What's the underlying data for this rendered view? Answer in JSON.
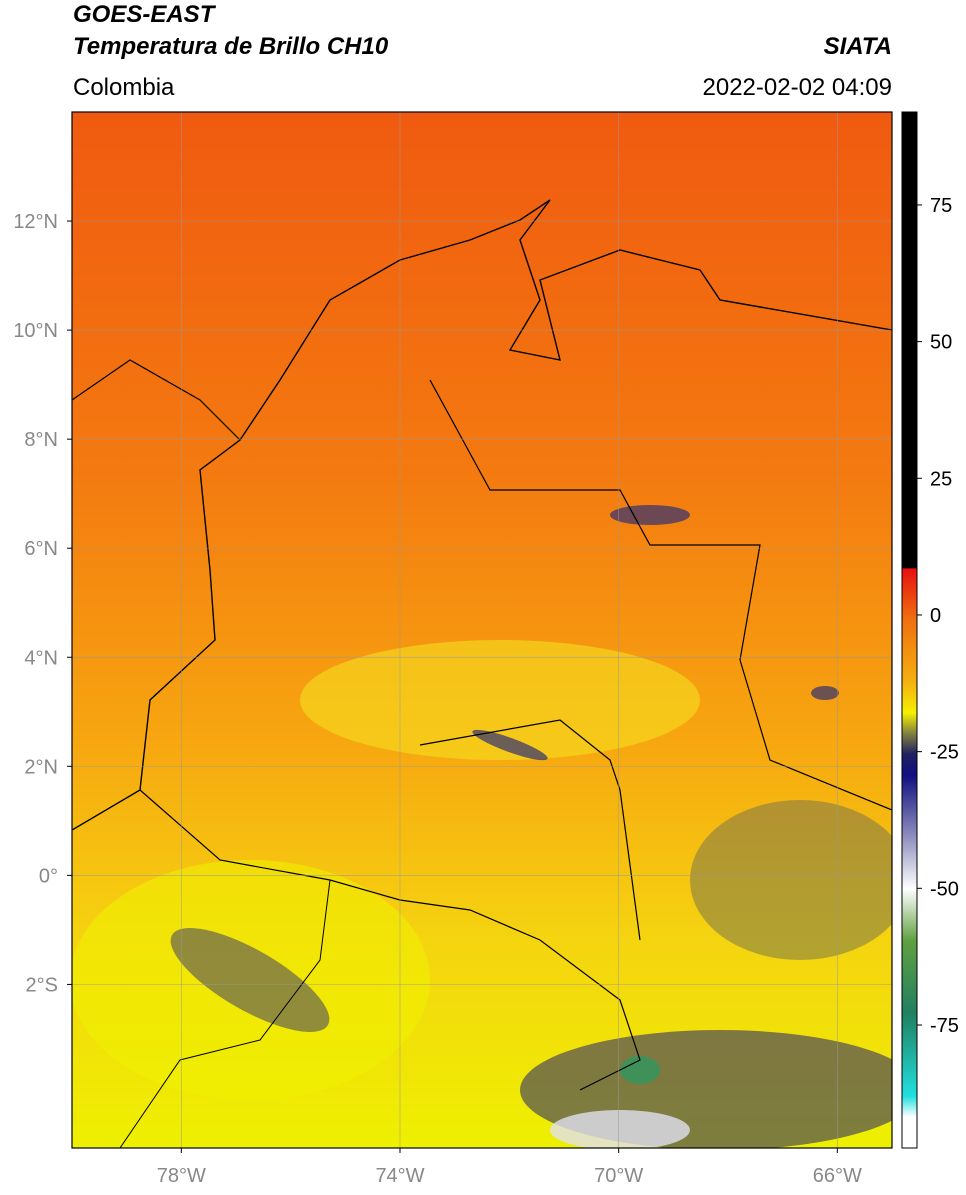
{
  "header": {
    "satellite": "GOES-EAST",
    "product": "Temperatura de Brillo CH10",
    "region": "Colombia",
    "source": "SIATA",
    "datetime": "2022-02-02 04:09"
  },
  "map": {
    "lon_lim": [
      -80,
      -65
    ],
    "lat_lim": [
      -5,
      14
    ],
    "lon_ticks": [
      {
        "value": -78,
        "label": "78°W"
      },
      {
        "value": -74,
        "label": "74°W"
      },
      {
        "value": -70,
        "label": "70°W"
      },
      {
        "value": -66,
        "label": "66°W"
      }
    ],
    "lat_ticks": [
      {
        "value": 12,
        "label": "12°N"
      },
      {
        "value": 10,
        "label": "10°N"
      },
      {
        "value": 8,
        "label": "8°N"
      },
      {
        "value": 6,
        "label": "6°N"
      },
      {
        "value": 4,
        "label": "4°N"
      },
      {
        "value": 2,
        "label": "2°N"
      },
      {
        "value": 0,
        "label": "0°"
      },
      {
        "value": -2,
        "label": "2°S"
      }
    ]
  },
  "colorbar": {
    "lim": [
      -97.5,
      92
    ],
    "ticks": [
      75,
      50,
      25,
      0,
      -25,
      -50,
      -75
    ]
  }
}
